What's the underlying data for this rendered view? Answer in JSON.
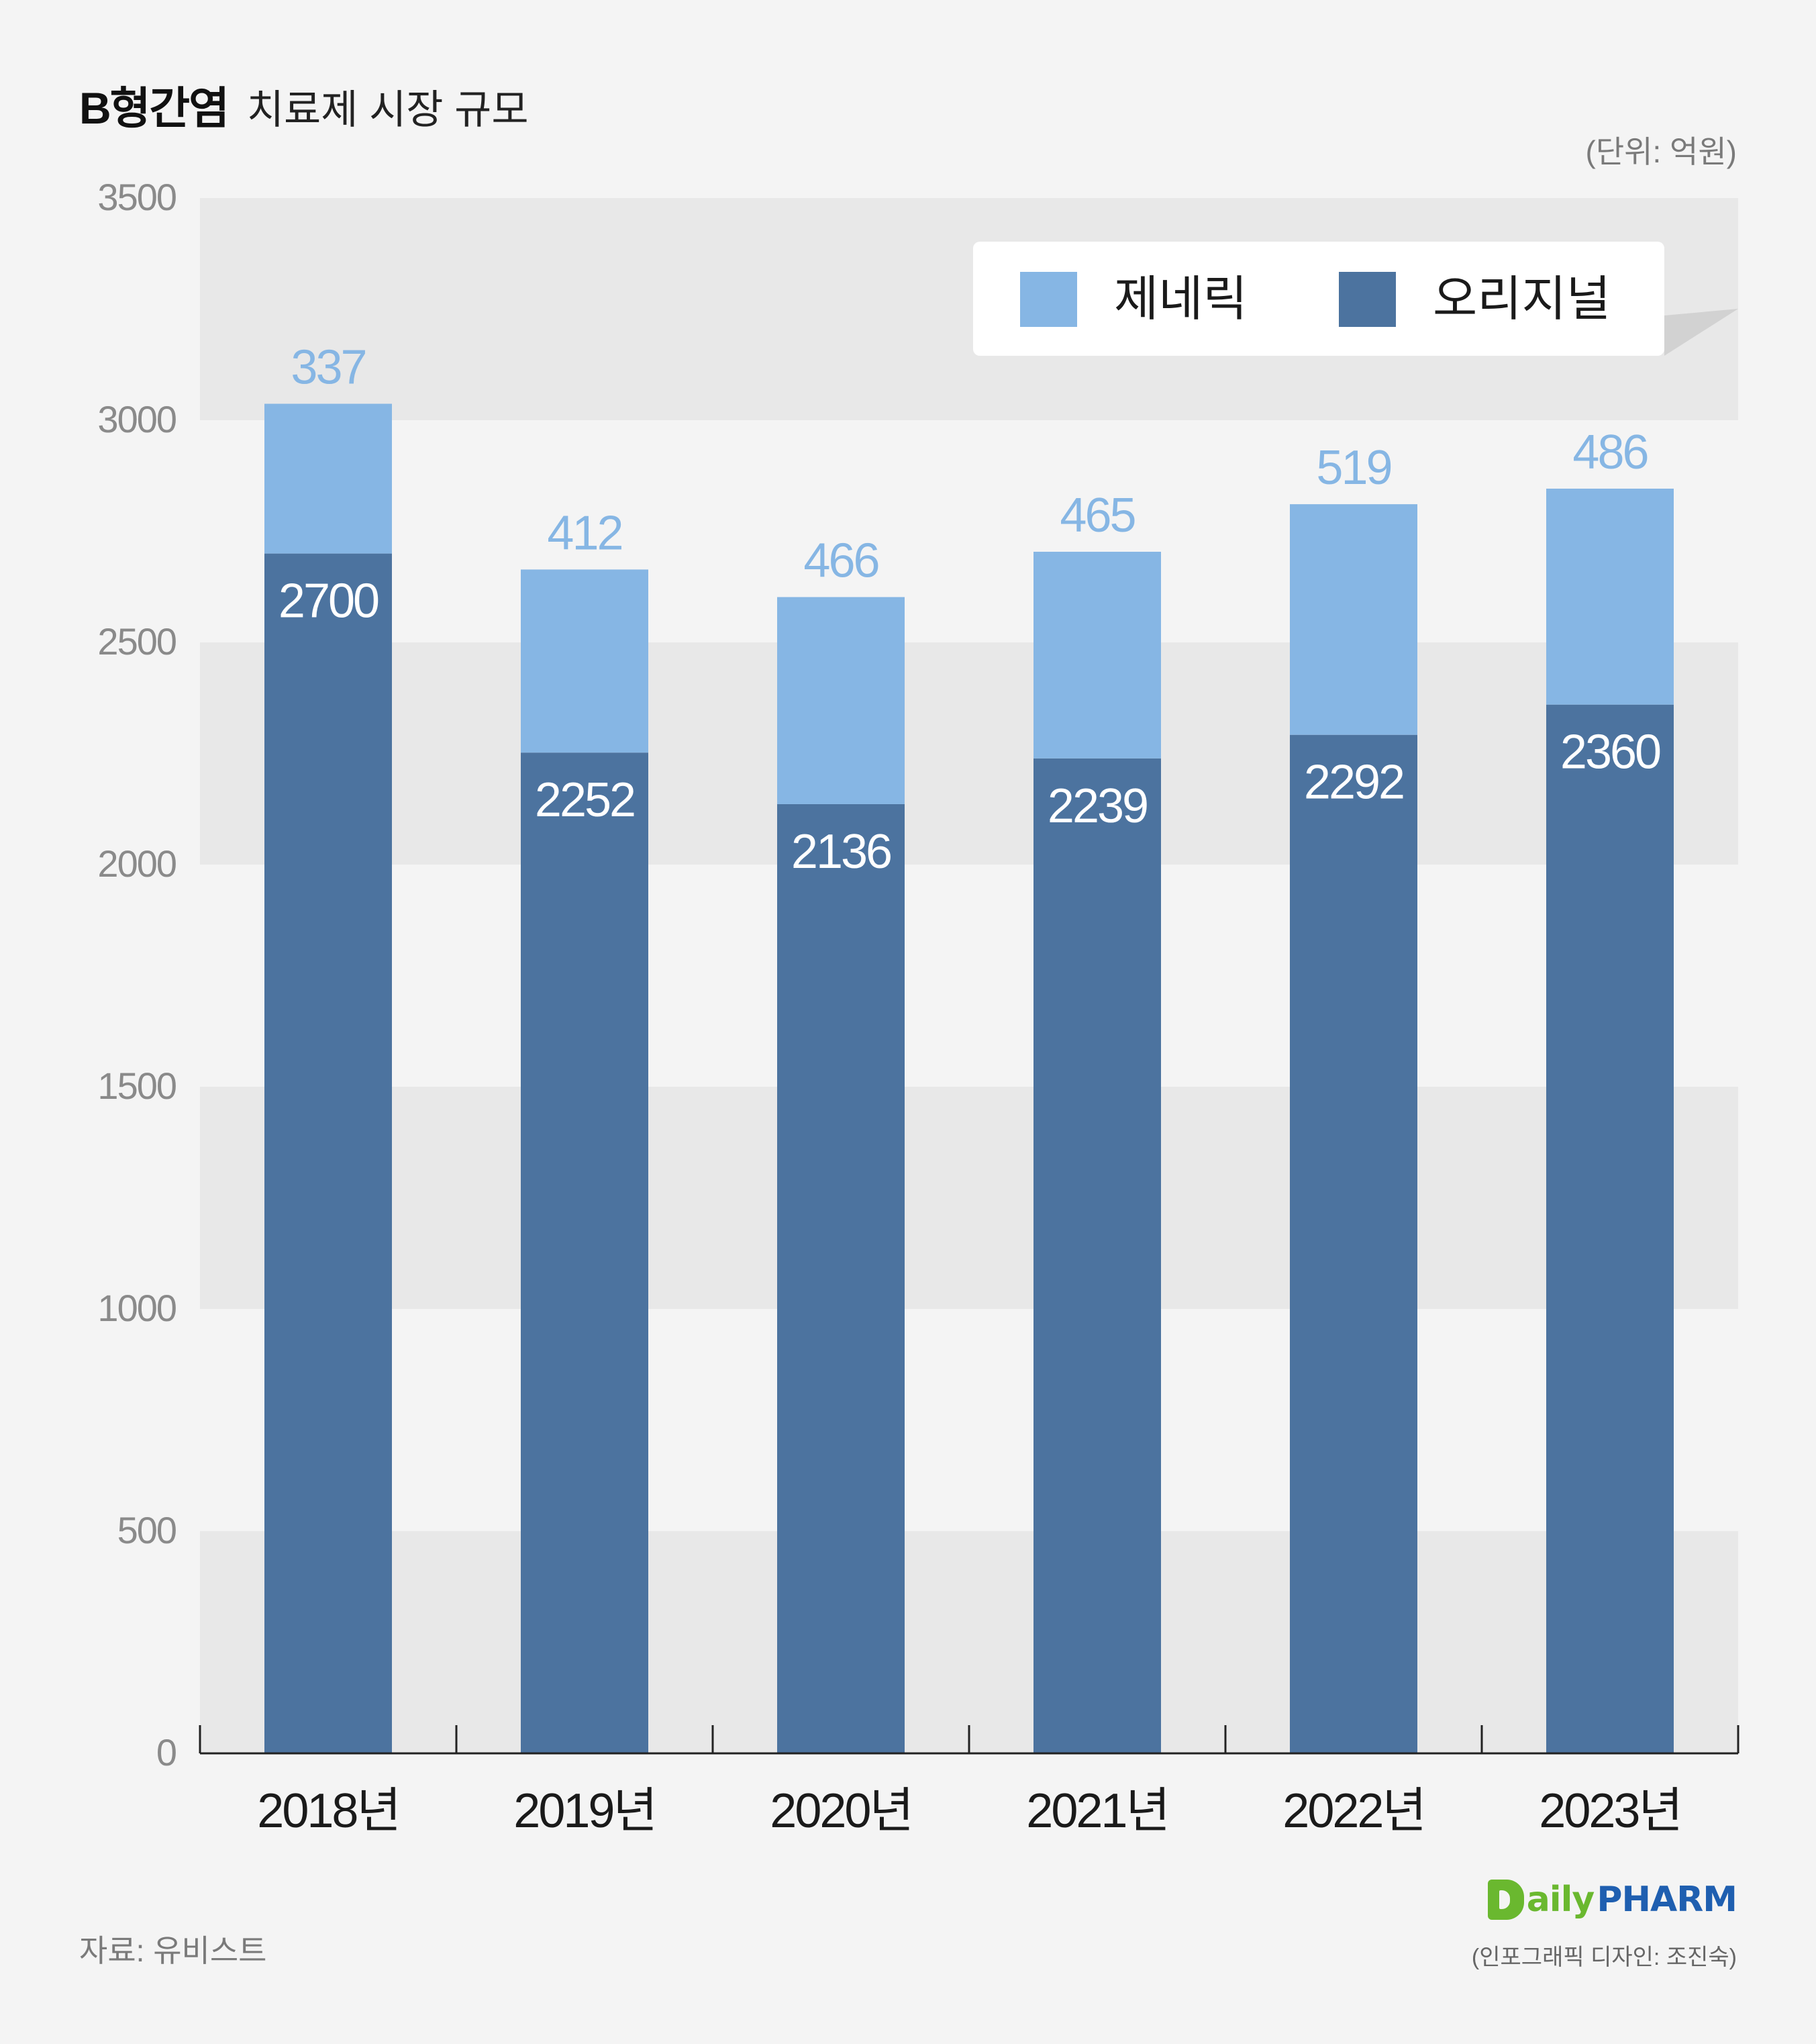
{
  "title": {
    "main": "B형간염",
    "sub": "치료제 시장 규모"
  },
  "unit_label": "(단위: 억원)",
  "source_label": "자료: 유비스트",
  "credit_label": "(인포그래픽 디자인: 조진숙)",
  "logo": {
    "daily": "aily",
    "pharm": "PHARM"
  },
  "colors": {
    "generic": "#86b6e4",
    "original": "#4c739f",
    "band": "#e8e8e8",
    "background": "#f4f4f4",
    "generic_label": "#86b6e4",
    "original_label": "#ffffff"
  },
  "chart_data": {
    "type": "bar",
    "stacked": true,
    "categories": [
      "2018년",
      "2019년",
      "2020년",
      "2021년",
      "2022년",
      "2023년"
    ],
    "series": [
      {
        "name": "오리지널",
        "values": [
          2700,
          2252,
          2136,
          2239,
          2292,
          2360
        ]
      },
      {
        "name": "제네릭",
        "values": [
          337,
          412,
          466,
          465,
          519,
          486
        ]
      }
    ],
    "ylim": [
      0,
      3500
    ],
    "yticks": [
      0,
      500,
      1000,
      1500,
      2000,
      2500,
      3000,
      3500
    ],
    "legend": {
      "entries": [
        "제네릭",
        "오리지널"
      ],
      "placement": "top-right"
    },
    "grid": "alternating horizontal bands",
    "title": "B형간염 치료제 시장 규모",
    "xlabel": "",
    "ylabel": ""
  }
}
